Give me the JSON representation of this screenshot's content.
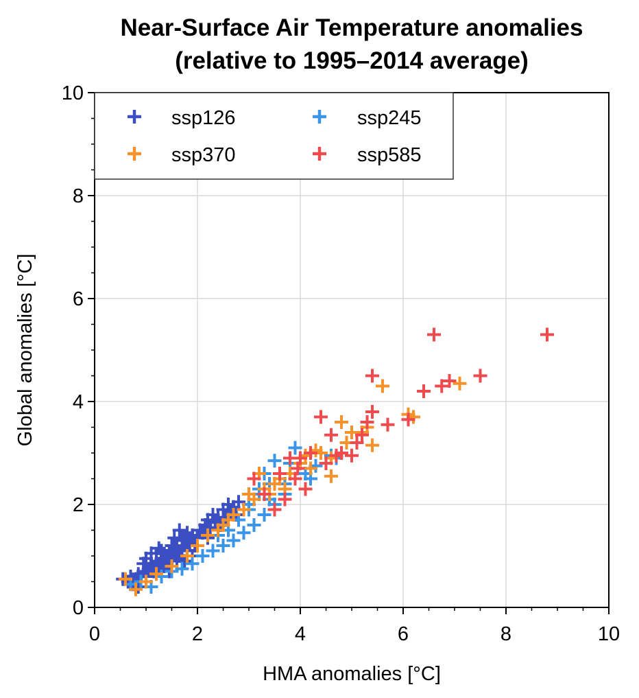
{
  "chart_data": {
    "type": "scatter",
    "title": "Near-Surface Air Temperature anomalies",
    "subtitle": "(relative to 1995–2014 average)",
    "xlabel": "HMA anomalies [°C]",
    "ylabel": "Global anomalies [°C]",
    "xlim": [
      0,
      10
    ],
    "ylim": [
      0,
      10
    ],
    "xticks": [
      "0",
      "2",
      "4",
      "6",
      "8",
      "10"
    ],
    "yticks": [
      "0",
      "2",
      "4",
      "6",
      "8",
      "10"
    ],
    "grid": true,
    "legend": {
      "placement": "top-left",
      "columns": 2
    },
    "marker": "plus",
    "series": [
      {
        "name": "ssp126",
        "color": "#3b4ec2",
        "points": [
          [
            0.55,
            0.55
          ],
          [
            0.65,
            0.5
          ],
          [
            0.7,
            0.6
          ],
          [
            0.75,
            0.45
          ],
          [
            0.8,
            0.55
          ],
          [
            0.85,
            0.65
          ],
          [
            0.9,
            0.5
          ],
          [
            0.95,
            0.7
          ],
          [
            1.0,
            0.6
          ],
          [
            1.05,
            0.75
          ],
          [
            1.1,
            0.8
          ],
          [
            1.15,
            0.7
          ],
          [
            1.2,
            0.9
          ],
          [
            1.25,
            0.85
          ],
          [
            1.3,
            0.95
          ],
          [
            1.35,
            0.8
          ],
          [
            1.4,
            1.0
          ],
          [
            1.45,
            1.05
          ],
          [
            1.5,
            0.9
          ],
          [
            1.55,
            1.1
          ],
          [
            1.6,
            1.2
          ],
          [
            1.65,
            1.0
          ],
          [
            1.7,
            1.15
          ],
          [
            1.75,
            1.3
          ],
          [
            1.8,
            1.1
          ],
          [
            1.85,
            1.25
          ],
          [
            1.9,
            1.4
          ],
          [
            1.95,
            1.2
          ],
          [
            2.0,
            1.35
          ],
          [
            2.05,
            1.5
          ],
          [
            2.1,
            1.45
          ],
          [
            2.15,
            1.6
          ],
          [
            2.2,
            1.7
          ],
          [
            2.25,
            1.55
          ],
          [
            2.3,
            1.8
          ],
          [
            2.35,
            1.65
          ],
          [
            2.4,
            1.75
          ],
          [
            2.5,
            1.9
          ],
          [
            2.55,
            1.7
          ],
          [
            2.6,
            2.0
          ],
          [
            2.65,
            1.85
          ],
          [
            2.7,
            1.95
          ],
          [
            2.8,
            2.05
          ],
          [
            2.75,
            1.8
          ],
          [
            1.0,
            0.95
          ],
          [
            1.1,
            1.05
          ],
          [
            1.2,
            0.75
          ],
          [
            1.3,
            1.1
          ],
          [
            1.4,
            0.85
          ],
          [
            1.5,
            1.2
          ],
          [
            1.6,
            0.95
          ],
          [
            1.7,
            1.35
          ],
          [
            1.8,
            1.45
          ],
          [
            1.9,
            1.0
          ],
          [
            2.0,
            1.2
          ],
          [
            1.65,
            1.5
          ],
          [
            1.75,
            0.9
          ],
          [
            0.85,
            0.4
          ],
          [
            0.95,
            0.85
          ],
          [
            1.55,
            1.35
          ],
          [
            2.2,
            1.35
          ],
          [
            2.45,
            1.6
          ],
          [
            1.25,
            1.15
          ],
          [
            1.45,
            0.7
          ]
        ]
      },
      {
        "name": "ssp245",
        "color": "#3a94e8",
        "points": [
          [
            0.7,
            0.45
          ],
          [
            0.9,
            0.5
          ],
          [
            1.1,
            0.4
          ],
          [
            1.3,
            0.6
          ],
          [
            1.5,
            0.7
          ],
          [
            1.7,
            0.75
          ],
          [
            1.9,
            0.85
          ],
          [
            2.1,
            1.0
          ],
          [
            2.3,
            1.1
          ],
          [
            2.5,
            1.2
          ],
          [
            2.7,
            1.3
          ],
          [
            2.9,
            1.45
          ],
          [
            3.1,
            1.6
          ],
          [
            3.3,
            1.8
          ],
          [
            3.5,
            2.0
          ],
          [
            3.7,
            2.2
          ],
          [
            3.9,
            2.5
          ],
          [
            4.1,
            2.6
          ],
          [
            4.3,
            2.75
          ],
          [
            4.5,
            2.8
          ],
          [
            4.7,
            2.9
          ],
          [
            3.0,
            2.0
          ],
          [
            3.2,
            2.2
          ],
          [
            3.4,
            2.4
          ],
          [
            3.6,
            2.6
          ],
          [
            3.8,
            2.8
          ],
          [
            3.5,
            2.85
          ],
          [
            3.9,
            3.1
          ],
          [
            4.2,
            2.5
          ],
          [
            2.6,
            1.5
          ],
          [
            2.8,
            1.7
          ],
          [
            3.0,
            1.9
          ],
          [
            3.2,
            2.3
          ],
          [
            3.4,
            2.1
          ],
          [
            2.4,
            1.4
          ],
          [
            3.3,
            2.6
          ],
          [
            3.7,
            2.4
          ],
          [
            4.6,
            2.95
          ]
        ]
      },
      {
        "name": "ssp370",
        "color": "#f7922a",
        "points": [
          [
            0.6,
            0.55
          ],
          [
            0.8,
            0.35
          ],
          [
            1.0,
            0.5
          ],
          [
            1.2,
            0.65
          ],
          [
            1.5,
            0.8
          ],
          [
            1.8,
            1.0
          ],
          [
            2.0,
            1.2
          ],
          [
            2.2,
            1.4
          ],
          [
            2.5,
            1.6
          ],
          [
            2.7,
            1.8
          ],
          [
            2.9,
            1.9
          ],
          [
            3.1,
            2.1
          ],
          [
            3.3,
            2.3
          ],
          [
            3.6,
            2.5
          ],
          [
            3.8,
            2.6
          ],
          [
            4.0,
            2.8
          ],
          [
            4.2,
            2.7
          ],
          [
            4.4,
            3.0
          ],
          [
            4.6,
            2.9
          ],
          [
            4.6,
            2.55
          ],
          [
            4.8,
            3.6
          ],
          [
            4.9,
            3.2
          ],
          [
            5.0,
            3.4
          ],
          [
            5.2,
            3.4
          ],
          [
            5.3,
            3.5
          ],
          [
            5.4,
            3.15
          ],
          [
            5.6,
            4.3
          ],
          [
            6.1,
            3.75
          ],
          [
            6.2,
            3.7
          ],
          [
            7.1,
            4.35
          ],
          [
            3.0,
            2.2
          ],
          [
            3.2,
            2.6
          ],
          [
            3.4,
            2.2
          ],
          [
            3.5,
            2.4
          ],
          [
            3.7,
            2.3
          ],
          [
            4.1,
            2.95
          ],
          [
            4.3,
            3.05
          ],
          [
            2.4,
            1.5
          ],
          [
            2.6,
            1.7
          ]
        ]
      },
      {
        "name": "ssp585",
        "color": "#ef4b4e",
        "points": [
          [
            3.5,
            1.9
          ],
          [
            3.7,
            2.1
          ],
          [
            3.9,
            2.5
          ],
          [
            4.0,
            2.9
          ],
          [
            4.1,
            2.3
          ],
          [
            4.4,
            3.7
          ],
          [
            4.6,
            3.35
          ],
          [
            4.8,
            3.0
          ],
          [
            5.0,
            2.95
          ],
          [
            5.2,
            3.35
          ],
          [
            5.3,
            3.6
          ],
          [
            5.4,
            3.8
          ],
          [
            5.4,
            4.5
          ],
          [
            5.7,
            3.55
          ],
          [
            6.1,
            3.65
          ],
          [
            6.4,
            4.2
          ],
          [
            6.6,
            5.3
          ],
          [
            6.75,
            4.3
          ],
          [
            6.9,
            4.4
          ],
          [
            7.5,
            4.5
          ],
          [
            8.8,
            5.3
          ],
          [
            3.6,
            2.6
          ],
          [
            3.8,
            2.9
          ],
          [
            4.2,
            3.0
          ],
          [
            4.5,
            2.8
          ],
          [
            3.3,
            2.2
          ],
          [
            3.1,
            2.5
          ],
          [
            4.7,
            2.95
          ],
          [
            5.1,
            3.2
          ],
          [
            3.95,
            2.7
          ]
        ]
      }
    ]
  }
}
